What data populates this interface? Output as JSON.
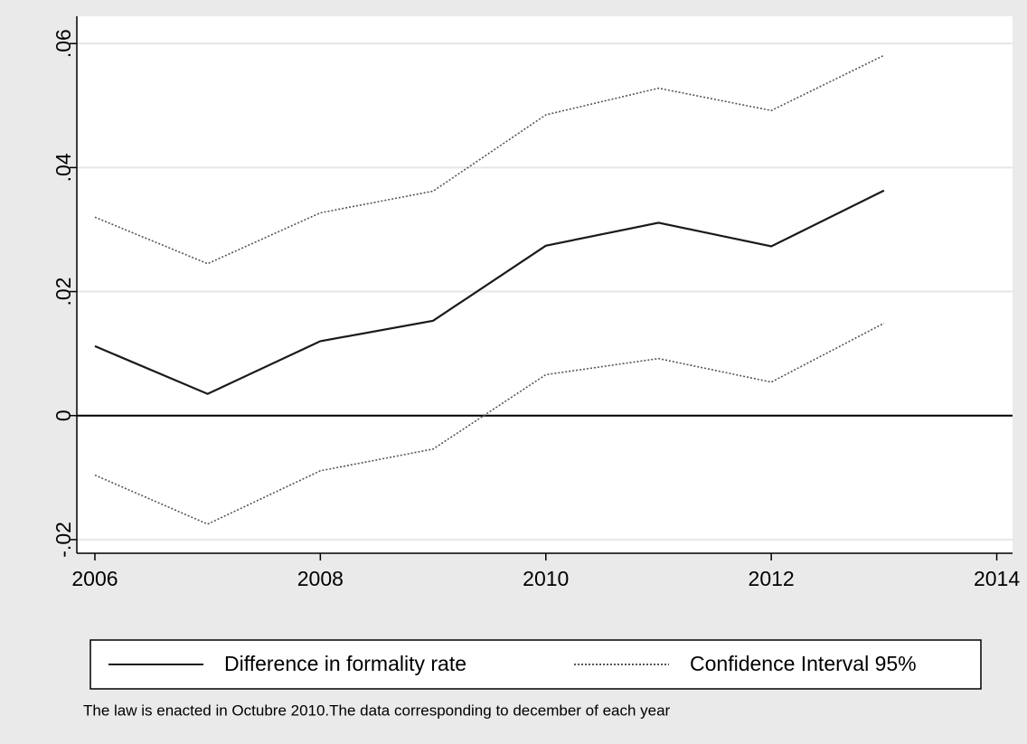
{
  "chart_data": {
    "type": "line",
    "x": [
      2006,
      2007,
      2008,
      2009,
      2010,
      2011,
      2012,
      2013
    ],
    "series": [
      {
        "name": "Difference in formality rate",
        "color": "#1a1a1a",
        "style": "solid",
        "values": [
          0.0112,
          0.0035,
          0.012,
          0.0153,
          0.0274,
          0.0311,
          0.0273,
          0.0363
        ]
      },
      {
        "name": "Confidence Interval 95%",
        "color": "#555555",
        "style": "dotted",
        "values": [
          0.032,
          0.0245,
          0.0327,
          0.0362,
          0.0485,
          0.0528,
          0.0492,
          0.0581
        ],
        "lower": [
          -0.0096,
          -0.0175,
          -0.0089,
          -0.0054,
          0.0066,
          0.0092,
          0.0054,
          0.0149
        ]
      }
    ],
    "xlim": [
      2005.84,
      2014.14
    ],
    "xticks": [
      2006,
      2008,
      2010,
      2012,
      2014
    ],
    "ylim": [
      -0.0222,
      0.0644
    ],
    "yticks": [
      {
        "value": -0.02,
        "label": "-.02"
      },
      0,
      {
        "value": 0.02,
        "label": ".02"
      },
      {
        "value": 0.04,
        "label": ".04"
      },
      {
        "value": 0.06,
        "label": ".06"
      }
    ],
    "yline": 0,
    "grid": true,
    "note": "The law is enacted in Octubre 2010.The data corresponding to december of each year"
  }
}
